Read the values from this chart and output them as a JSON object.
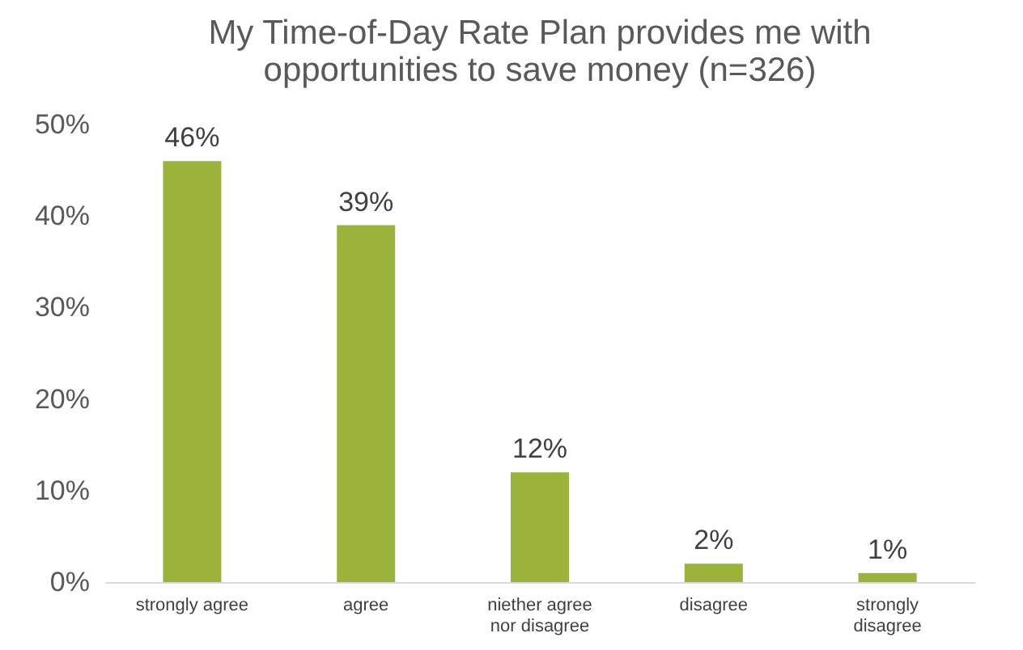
{
  "chart_data": {
    "type": "bar",
    "title": "My Time-of-Day Rate Plan provides me with opportunities to save money (n=326)",
    "categories": [
      "strongly agree",
      "agree",
      "niether agree nor disagree",
      "disagree",
      "strongly disagree"
    ],
    "values": [
      46,
      39,
      12,
      2,
      1
    ],
    "value_labels": [
      "46%",
      "39%",
      "12%",
      "2%",
      "1%"
    ],
    "color": "#9bb23b",
    "ylim": [
      0,
      50
    ],
    "yticks": [
      {
        "value": 0,
        "label": "0%"
      },
      {
        "value": 10,
        "label": "10%"
      },
      {
        "value": 20,
        "label": "20%"
      },
      {
        "value": 30,
        "label": "30%"
      },
      {
        "value": 40,
        "label": "40%"
      },
      {
        "value": 50,
        "label": "50%"
      }
    ],
    "grid": false
  }
}
